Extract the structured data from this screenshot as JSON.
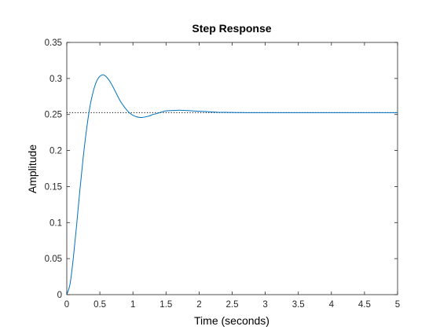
{
  "chart_data": {
    "type": "line",
    "title": "Step Response",
    "xlabel": "Time (seconds)",
    "ylabel": "Amplitude",
    "xlim": [
      0,
      5
    ],
    "ylim": [
      0,
      0.35
    ],
    "xticks": [
      "0",
      "0.5",
      "1",
      "1.5",
      "2",
      "2.5",
      "3",
      "3.5",
      "4",
      "4.5",
      "5"
    ],
    "yticks": [
      "0",
      "0.05",
      "0.1",
      "0.15",
      "0.2",
      "0.25",
      "0.3",
      "0.35"
    ],
    "grid": false,
    "steady_state_value": 0.2525,
    "series": [
      {
        "color": "#0072BD",
        "x": [
          0,
          0.05,
          0.1,
          0.15,
          0.2,
          0.25,
          0.3,
          0.35,
          0.4,
          0.45,
          0.5,
          0.55,
          0.6,
          0.65,
          0.7,
          0.75,
          0.8,
          0.85,
          0.9,
          0.95,
          1.0,
          1.05,
          1.1,
          1.15,
          1.2,
          1.25,
          1.3,
          1.35,
          1.4,
          1.45,
          1.5,
          1.6,
          1.7,
          1.8,
          1.9,
          2.0,
          2.1,
          2.2,
          2.3,
          2.4,
          2.5,
          2.6,
          2.7,
          2.8,
          3.0,
          3.5,
          4.0,
          4.5,
          5.0
        ],
        "y": [
          0,
          0.015,
          0.052,
          0.098,
          0.147,
          0.192,
          0.23,
          0.261,
          0.282,
          0.296,
          0.303,
          0.305,
          0.302,
          0.296,
          0.288,
          0.279,
          0.27,
          0.263,
          0.257,
          0.252,
          0.249,
          0.247,
          0.246,
          0.246,
          0.247,
          0.248,
          0.25,
          0.251,
          0.2525,
          0.254,
          0.255,
          0.2555,
          0.256,
          0.2555,
          0.255,
          0.2545,
          0.254,
          0.2535,
          0.253,
          0.253,
          0.2528,
          0.2527,
          0.2526,
          0.2525,
          0.2525,
          0.2525,
          0.2525,
          0.2525,
          0.2525
        ]
      }
    ]
  }
}
